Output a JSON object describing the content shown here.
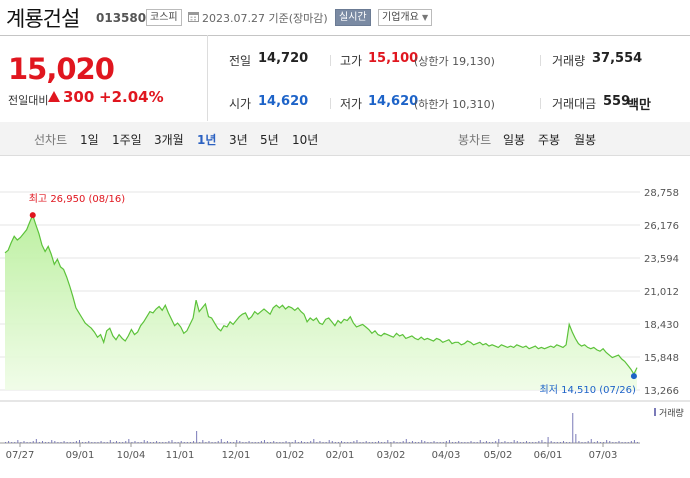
{
  "header": {
    "name": "계룡건설",
    "code": "013580",
    "market": "코스피",
    "date": "2023.07.27 기준(장마감)",
    "realtime_badge": "실시간",
    "company_button": "기업개요"
  },
  "quote": {
    "price": "15,020",
    "vs_label": "전일대비",
    "change": "300",
    "rate": "+2.04%",
    "prev_label": "전일",
    "prev": "14,720",
    "high_label": "고가",
    "high": "15,100",
    "upper_limit": "(상한가 19,130)",
    "volume_label": "거래량",
    "volume": "37,554",
    "open_label": "시가",
    "open": "14,620",
    "low_label": "저가",
    "low": "14,620",
    "lower_limit": "(하한가 10,310)",
    "value_label": "거래대금",
    "value": "559",
    "value_unit": "백만",
    "colors": {
      "up": "#e0161f",
      "down": "#1d63c8",
      "accent": "#2b61c1"
    }
  },
  "tabs": {
    "line_label": "선차트",
    "line": [
      "1일",
      "1주일",
      "3개월",
      "1년",
      "3년",
      "5년",
      "10년"
    ],
    "line_active": "1년",
    "candle_label": "봉차트",
    "candle": [
      "일봉",
      "주봉",
      "월봉"
    ]
  },
  "chart_data": {
    "type": "area",
    "y_ticks": [
      "28,758",
      "26,176",
      "23,594",
      "21,012",
      "18,430",
      "15,848",
      "13,266"
    ],
    "ylim": [
      13266,
      28758
    ],
    "x_ticks": [
      "07/27",
      "09/01",
      "10/04",
      "11/01",
      "12/01",
      "01/02",
      "02/01",
      "03/02",
      "04/03",
      "05/02",
      "06/01",
      "07/03"
    ],
    "volume_label": "거래량",
    "max_annotation": "최고 26,950 (08/16)",
    "min_annotation": "최저 14,510 (07/26)",
    "max_value": 26950,
    "min_value": 14510,
    "series": [
      {
        "values": [
          24000,
          24200,
          24800,
          25300,
          25000,
          25200,
          25500,
          25800,
          26400,
          26950,
          26200,
          25500,
          24600,
          24100,
          24500,
          23900,
          23100,
          23500,
          22900,
          22700,
          22100,
          21400,
          20600,
          19700,
          19300,
          18900,
          18500,
          18300,
          18100,
          17800,
          17400,
          17600,
          17000,
          17900,
          18100,
          17500,
          17200,
          17600,
          17300,
          17100,
          17500,
          18000,
          17600,
          17800,
          18300,
          18600,
          19000,
          19400,
          19300,
          19600,
          19800,
          19500,
          19900,
          19300,
          18800,
          18300,
          18500,
          18200,
          17700,
          17900,
          18400,
          18900,
          20300,
          19400,
          19700,
          20000,
          19000,
          18900,
          18500,
          18100,
          17900,
          18300,
          18200,
          18600,
          18400,
          18700,
          19000,
          19200,
          19300,
          18800,
          19000,
          19400,
          19200,
          19400,
          19600,
          19400,
          19200,
          19700,
          19900,
          19700,
          19900,
          19600,
          19800,
          19700,
          19500,
          19700,
          19400,
          19200,
          18600,
          18900,
          18700,
          18900,
          18500,
          18400,
          18800,
          18900,
          18600,
          18300,
          18700,
          18500,
          18800,
          18700,
          19000,
          18500,
          18200,
          18300,
          18400,
          18200,
          18000,
          17700,
          17900,
          17600,
          17500,
          17700,
          17600,
          17500,
          17400,
          17700,
          17500,
          17600,
          17300,
          17400,
          17500,
          17300,
          17200,
          17400,
          17200,
          17300,
          17200,
          17100,
          17300,
          17200,
          17000,
          17100,
          17200,
          16900,
          17000,
          17000,
          16800,
          16900,
          17100,
          17000,
          16800,
          16900,
          17000,
          16800,
          16900,
          16700,
          16800,
          16700,
          16600,
          16800,
          16700,
          16600,
          16700,
          16600,
          16800,
          16700,
          16600,
          16700,
          16500,
          16600,
          16700,
          16500,
          16600,
          16500,
          16600,
          16700,
          16600,
          16800,
          16700,
          16600,
          16800,
          18400,
          17800,
          17300,
          16900,
          16700,
          16800,
          16600,
          16500,
          16600,
          16400,
          16300,
          16500,
          16200,
          16000,
          15800,
          15900,
          16000,
          15700,
          15500,
          15200,
          14900,
          14510,
          15020
        ]
      }
    ]
  }
}
